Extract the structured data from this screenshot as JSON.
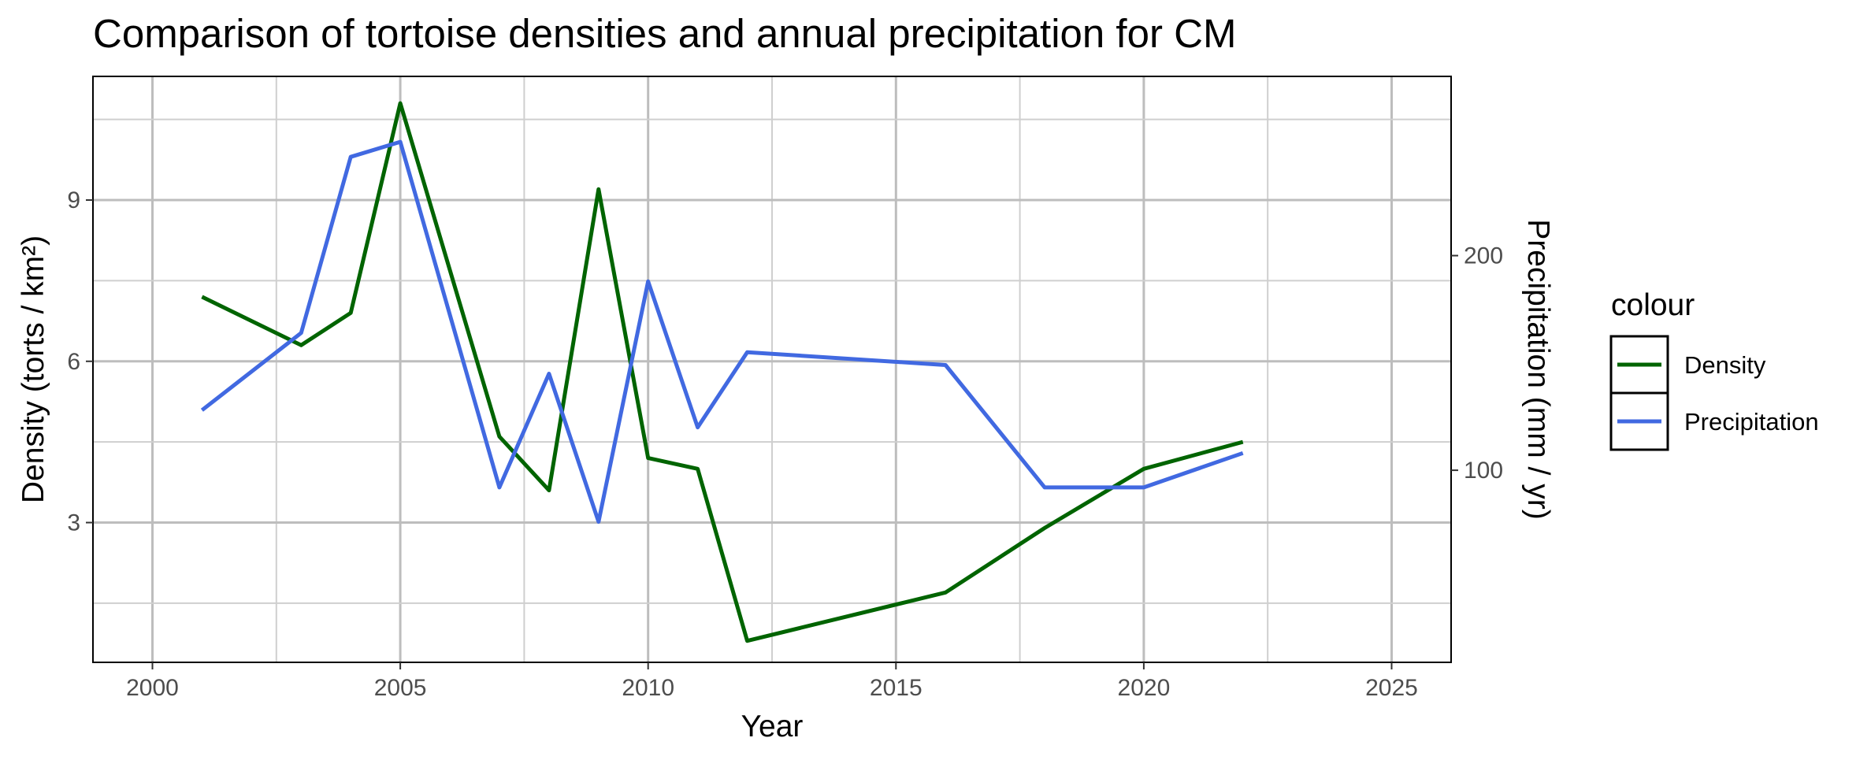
{
  "chart_data": {
    "type": "line",
    "title": "Comparison of tortoise densities and annual precipitation for CM",
    "xlabel": "Year",
    "ylabel": "Density (torts / km²)",
    "y2label": "Precipitation (mm / yr)",
    "xlim": [
      1998.8,
      2026.2
    ],
    "ylim": [
      0.4,
      11.3
    ],
    "y2lim": [
      10.5,
      283.5
    ],
    "x_ticks": [
      2000,
      2005,
      2010,
      2015,
      2020,
      2025
    ],
    "y_ticks": [
      3,
      6,
      9
    ],
    "y2_ticks": [
      100,
      200
    ],
    "grid": true,
    "legend": {
      "title": "colour",
      "position": "right",
      "entries": [
        "Density",
        "Precipitation"
      ]
    },
    "series": [
      {
        "name": "Density",
        "axis": "left",
        "color": "#006400",
        "x": [
          2001,
          2003,
          2004,
          2005,
          2007,
          2008,
          2009,
          2010,
          2011,
          2012,
          2016,
          2018,
          2020,
          2022
        ],
        "y": [
          7.2,
          6.3,
          6.9,
          10.8,
          4.6,
          3.6,
          9.2,
          4.2,
          4.0,
          0.8,
          1.7,
          2.9,
          4.0,
          4.5
        ]
      },
      {
        "name": "Precipitation",
        "axis": "right",
        "color": "#4169E1",
        "x": [
          2001,
          2003,
          2004,
          2005,
          2007,
          2008,
          2009,
          2010,
          2011,
          2012,
          2016,
          2018,
          2020,
          2022
        ],
        "y": [
          128,
          164,
          246,
          253,
          92,
          145,
          76,
          188,
          120,
          155,
          149,
          92,
          92,
          108
        ]
      }
    ]
  }
}
